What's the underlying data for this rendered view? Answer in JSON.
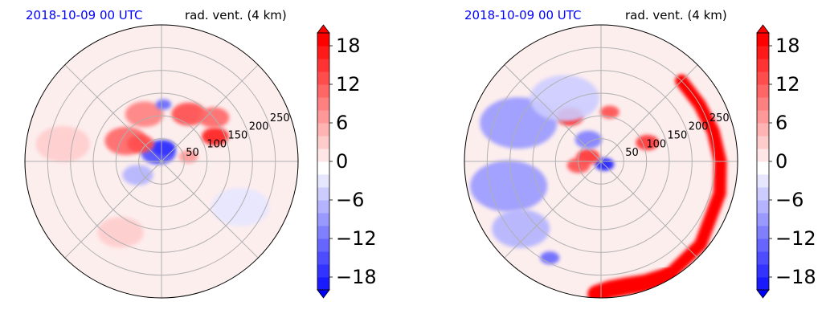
{
  "chart_data": [
    {
      "type": "heatmap",
      "projection": "polar",
      "date_label": "2018-10-09 00 UTC",
      "title": "rad. vent. (4 km)",
      "radial_ticks": [
        50,
        100,
        150,
        200,
        250
      ],
      "radial_max": 300,
      "grid": true,
      "colorbar": {
        "ticks": [
          "18",
          "12",
          "6",
          "0",
          "−6",
          "−12",
          "−18"
        ],
        "tick_values": [
          18,
          12,
          6,
          0,
          -6,
          -12,
          -18
        ],
        "range": [
          -20,
          20
        ],
        "extend": "both",
        "colormap": "bwr",
        "colors": {
          "min": "#0000ff",
          "mid": "#ffffff",
          "max": "#ff0000"
        }
      },
      "features": [
        {
          "kind": "patch",
          "value": -14,
          "r": 20,
          "theta_deg": -110,
          "size": 18
        },
        {
          "kind": "patch",
          "value": -16,
          "r": 30,
          "theta_deg": -80,
          "size": 12
        },
        {
          "kind": "patch",
          "value": 12,
          "r": 90,
          "theta_deg": -150,
          "size": 22
        },
        {
          "kind": "patch",
          "value": 10,
          "r": 110,
          "theta_deg": -110,
          "size": 20
        },
        {
          "kind": "patch",
          "value": 14,
          "r": 120,
          "theta_deg": -60,
          "size": 18
        },
        {
          "kind": "patch",
          "value": 18,
          "r": 130,
          "theta_deg": -25,
          "size": 14
        },
        {
          "kind": "patch",
          "value": 12,
          "r": 150,
          "theta_deg": -40,
          "size": 16
        },
        {
          "kind": "patch",
          "value": 14,
          "r": 60,
          "theta_deg": -140,
          "size": 14
        },
        {
          "kind": "patch",
          "value": -12,
          "r": 125,
          "theta_deg": -88,
          "size": 8
        },
        {
          "kind": "patch",
          "value": -6,
          "r": 60,
          "theta_deg": 150,
          "size": 16
        },
        {
          "kind": "patch",
          "value": 8,
          "r": 60,
          "theta_deg": -10,
          "size": 10
        },
        {
          "kind": "patch",
          "value": 4,
          "r": 180,
          "theta_deg": 120,
          "size": 24
        },
        {
          "kind": "patch",
          "value": -3,
          "r": 200,
          "theta_deg": 30,
          "size": 30
        },
        {
          "kind": "patch",
          "value": 3,
          "r": 220,
          "theta_deg": -170,
          "size": 28
        }
      ]
    },
    {
      "type": "heatmap",
      "projection": "polar",
      "date_label": "2018-10-09 00 UTC",
      "title": "rad. vent. (4 km)",
      "radial_ticks": [
        50,
        100,
        150,
        200,
        250
      ],
      "radial_max": 300,
      "grid": true,
      "colorbar": {
        "ticks": [
          "18",
          "12",
          "6",
          "0",
          "−6",
          "−12",
          "−18"
        ],
        "tick_values": [
          18,
          12,
          6,
          0,
          -6,
          -12,
          -18
        ],
        "range": [
          -20,
          20
        ],
        "extend": "both",
        "colormap": "bwr",
        "colors": {
          "min": "#0000ff",
          "mid": "#ffffff",
          "max": "#ff0000"
        }
      },
      "features": [
        {
          "kind": "patch",
          "value": -18,
          "r": 10,
          "theta_deg": 40,
          "size": 10
        },
        {
          "kind": "patch",
          "value": 16,
          "r": 30,
          "theta_deg": -160,
          "size": 12
        },
        {
          "kind": "patch",
          "value": 14,
          "r": 50,
          "theta_deg": 170,
          "size": 12
        },
        {
          "kind": "patch",
          "value": -10,
          "r": 55,
          "theta_deg": -120,
          "size": 14
        },
        {
          "kind": "patch",
          "value": 18,
          "r": 120,
          "theta_deg": -125,
          "size": 14
        },
        {
          "kind": "patch",
          "value": 14,
          "r": 110,
          "theta_deg": -80,
          "size": 10
        },
        {
          "kind": "patch",
          "value": 16,
          "r": 110,
          "theta_deg": -22,
          "size": 12
        },
        {
          "kind": "patch",
          "value": -8,
          "r": 200,
          "theta_deg": -155,
          "size": 40
        },
        {
          "kind": "patch",
          "value": -8,
          "r": 210,
          "theta_deg": 165,
          "size": 40
        },
        {
          "kind": "patch",
          "value": -6,
          "r": 230,
          "theta_deg": 140,
          "size": 30
        },
        {
          "kind": "patch",
          "value": -4,
          "r": 160,
          "theta_deg": -120,
          "size": 36
        },
        {
          "kind": "patch",
          "value": -12,
          "r": 240,
          "theta_deg": 118,
          "size": 10
        },
        {
          "kind": "band",
          "value": 20,
          "path_r": [
            250,
            250,
            255,
            262,
            270,
            285,
            292
          ],
          "path_theta_deg": [
            -45,
            -30,
            -15,
            0,
            15,
            40,
            60
          ],
          "width": 16
        },
        {
          "kind": "band",
          "value": 20,
          "path_r": [
            292,
            285,
            280,
            282,
            292
          ],
          "path_theta_deg": [
            60,
            70,
            78,
            86,
            92
          ],
          "width": 22
        }
      ]
    }
  ]
}
